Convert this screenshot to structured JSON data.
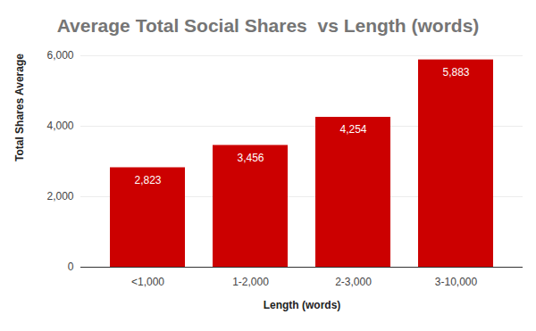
{
  "chart_data": {
    "type": "bar",
    "title": "Average Total Social Shares  vs Length (words)",
    "x_label": "Length (words)",
    "y_label": "Total Shares Average",
    "categories": [
      "<1,000",
      "1-2,000",
      "2-3,000",
      "3-10,000"
    ],
    "values": [
      2823,
      3456,
      4254,
      5883
    ],
    "value_labels": [
      "2,823",
      "3,456",
      "4,254",
      "5,883"
    ],
    "data_labels": true,
    "color": "#cc0000",
    "ylim": [
      0,
      6000
    ],
    "yticks": [
      0,
      {
        "value": 2000,
        "label": "2,000"
      },
      {
        "value": 4000,
        "label": "4,000"
      },
      {
        "value": 6000,
        "label": "6,000"
      }
    ],
    "grid": true
  }
}
